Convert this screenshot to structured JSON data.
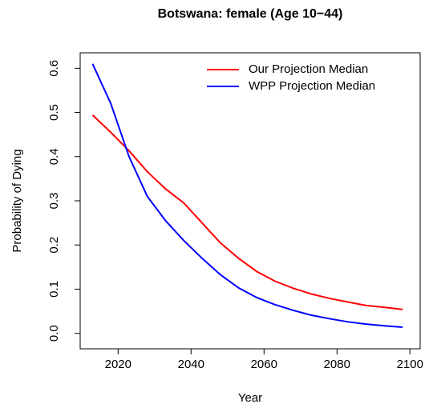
{
  "chart_data": {
    "type": "line",
    "title": "Botswana: female (Age 10−44)",
    "x_label": "Year",
    "y_label": "Probability of Dying",
    "x": [
      2013,
      2018,
      2023,
      2028,
      2033,
      2038,
      2043,
      2048,
      2053,
      2058,
      2063,
      2068,
      2073,
      2078,
      2083,
      2088,
      2093,
      2098
    ],
    "series": [
      {
        "name": "Our Projection Median",
        "color": "#ff0000",
        "values": [
          0.494,
          0.455,
          0.413,
          0.366,
          0.327,
          0.295,
          0.25,
          0.205,
          0.17,
          0.14,
          0.118,
          0.102,
          0.089,
          0.079,
          0.071,
          0.063,
          0.059,
          0.054
        ]
      },
      {
        "name": "WPP Projection Median",
        "color": "#0000ff",
        "values": [
          0.61,
          0.52,
          0.4,
          0.31,
          0.255,
          0.21,
          0.17,
          0.133,
          0.103,
          0.081,
          0.065,
          0.052,
          0.041,
          0.033,
          0.026,
          0.021,
          0.017,
          0.014
        ]
      }
    ],
    "xlim": [
      2009.6,
      2102.8
    ],
    "xticks": [
      2020,
      2040,
      2060,
      2080,
      2100
    ],
    "ylim": [
      -0.035,
      0.635
    ],
    "yticks": [
      {
        "value": 0,
        "label": "0.0"
      },
      0.1,
      0.2,
      0.3,
      0.4,
      0.5,
      0.6
    ],
    "legend": "topright"
  }
}
